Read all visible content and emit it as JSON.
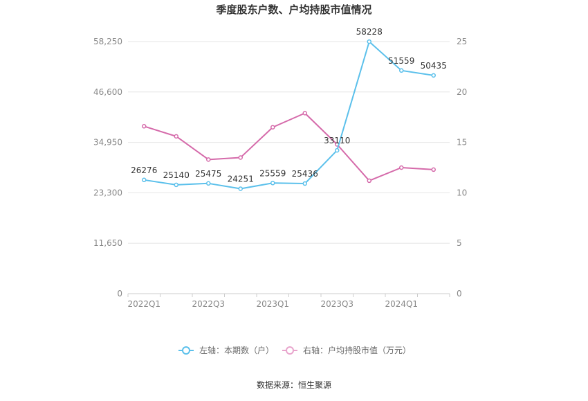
{
  "title": "季度股东户数、户均持股市值情况",
  "source": "数据来源：恒生聚源",
  "chart_data": {
    "type": "line",
    "categories": [
      "2022Q1",
      "2022Q2",
      "2022Q3",
      "2022Q4",
      "2023Q1",
      "2023Q2",
      "2023Q3",
      "2023Q4",
      "2024Q1",
      "2024Q2"
    ],
    "x_tick_labels": [
      "2022Q1",
      "",
      "2022Q3",
      "",
      "2023Q1",
      "",
      "2023Q3",
      "",
      "2024Q1",
      ""
    ],
    "left_axis": {
      "min": 0,
      "max": 58250,
      "ticks": [
        "0",
        "11,650",
        "23,300",
        "34,950",
        "46,600",
        "58,250"
      ]
    },
    "right_axis": {
      "min": 0,
      "max": 25,
      "ticks": [
        "0",
        "5",
        "10",
        "15",
        "20",
        "25"
      ]
    },
    "series": [
      {
        "name": "左轴：本期数（户）",
        "axis": "left",
        "color": "#5bc0eb",
        "values": [
          26276,
          25140,
          25475,
          24251,
          25559,
          25436,
          33110,
          58228,
          51559,
          50435
        ],
        "labels": [
          "26276",
          "25140",
          "25475",
          "24251",
          "25559",
          "25436",
          "33110",
          "58228",
          "51559",
          "50435"
        ]
      },
      {
        "name": "右轴：户均持股市值（万元）",
        "axis": "right",
        "color": "#d56aaa",
        "values": [
          16.6,
          15.6,
          13.3,
          13.5,
          16.5,
          17.9,
          14.8,
          11.2,
          12.5,
          12.3
        ]
      }
    ],
    "grid": true,
    "legend_position": "bottom"
  }
}
